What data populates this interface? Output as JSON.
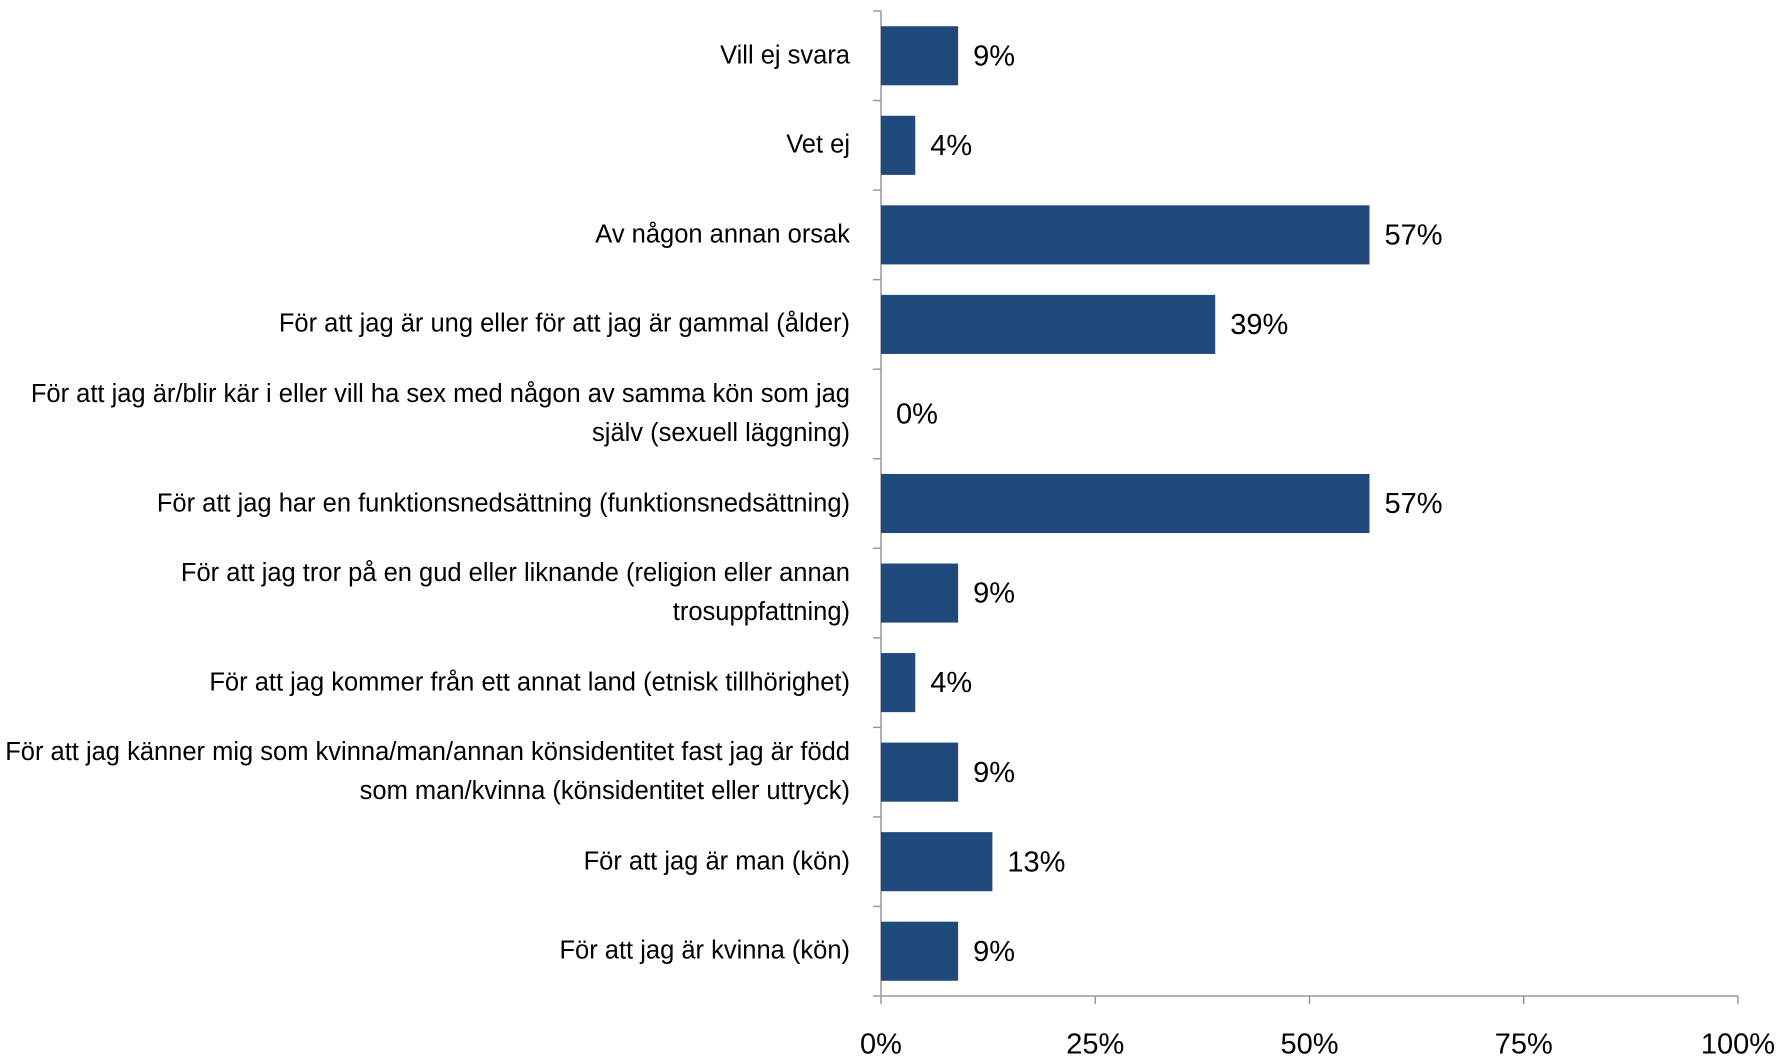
{
  "chart_data": {
    "type": "bar",
    "orientation": "horizontal",
    "color": "#214a7c",
    "categories": [
      "Vill ej svara",
      "Vet ej",
      "Av någon annan orsak",
      "För att jag är ung eller för att jag är gammal (ålder)",
      "För att jag är/blir kär i eller vill ha sex med någon av samma kön som jag själv (sexuell läggning)",
      "För att jag har en funktionsnedsättning (funktionsnedsättning)",
      "För att jag tror på en gud eller liknande (religion eller annan trosuppfattning)",
      "För att jag kommer från ett annat land (etnisk tillhörighet)",
      "För att jag känner mig som kvinna/man/annan könsidentitet fast jag är född som man/kvinna (könsidentitet eller uttryck)",
      "För att jag är man (kön)",
      "För att jag är kvinna (kön)"
    ],
    "values": [
      9,
      4,
      57,
      39,
      0,
      57,
      9,
      4,
      9,
      13,
      9
    ],
    "value_labels": [
      "9%",
      "4%",
      "57%",
      "39%",
      "0%",
      "57%",
      "9%",
      "4%",
      "9%",
      "13%",
      "9%"
    ],
    "xlim": [
      0,
      100
    ],
    "xticks": [
      {
        "value": 0,
        "label": "0%"
      },
      {
        "value": 25,
        "label": "25%"
      },
      {
        "value": 50,
        "label": "50%"
      },
      {
        "value": 75,
        "label": "75%"
      },
      {
        "value": 100,
        "label": "100%"
      }
    ]
  }
}
